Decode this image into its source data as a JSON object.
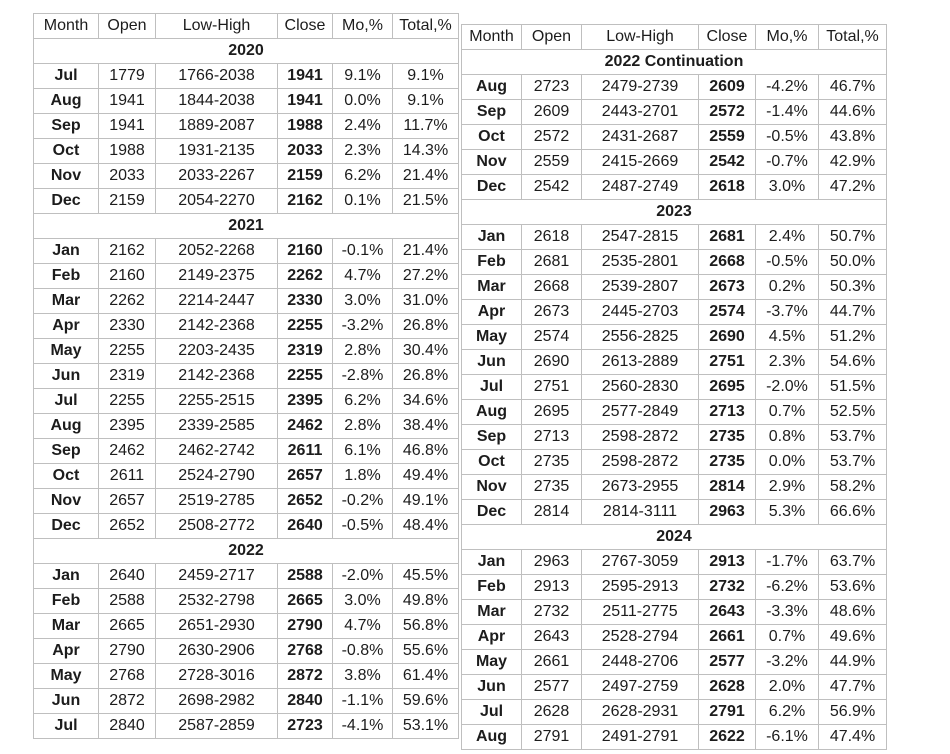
{
  "tables": [
    {
      "id": "left",
      "headers": [
        "Month",
        "Open",
        "Low-High",
        "Close",
        "Mo,%",
        "Total,%"
      ],
      "sections": [
        {
          "year": "2020",
          "rows": [
            [
              "Jul",
              "1779",
              "1766-2038",
              "1941",
              "9.1%",
              "9.1%"
            ],
            [
              "Aug",
              "1941",
              "1844-2038",
              "1941",
              "0.0%",
              "9.1%"
            ],
            [
              "Sep",
              "1941",
              "1889-2087",
              "1988",
              "2.4%",
              "11.7%"
            ],
            [
              "Oct",
              "1988",
              "1931-2135",
              "2033",
              "2.3%",
              "14.3%"
            ],
            [
              "Nov",
              "2033",
              "2033-2267",
              "2159",
              "6.2%",
              "21.4%"
            ],
            [
              "Dec",
              "2159",
              "2054-2270",
              "2162",
              "0.1%",
              "21.5%"
            ]
          ]
        },
        {
          "year": "2021",
          "rows": [
            [
              "Jan",
              "2162",
              "2052-2268",
              "2160",
              "-0.1%",
              "21.4%"
            ],
            [
              "Feb",
              "2160",
              "2149-2375",
              "2262",
              "4.7%",
              "27.2%"
            ],
            [
              "Mar",
              "2262",
              "2214-2447",
              "2330",
              "3.0%",
              "31.0%"
            ],
            [
              "Apr",
              "2330",
              "2142-2368",
              "2255",
              "-3.2%",
              "26.8%"
            ],
            [
              "May",
              "2255",
              "2203-2435",
              "2319",
              "2.8%",
              "30.4%"
            ],
            [
              "Jun",
              "2319",
              "2142-2368",
              "2255",
              "-2.8%",
              "26.8%"
            ],
            [
              "Jul",
              "2255",
              "2255-2515",
              "2395",
              "6.2%",
              "34.6%"
            ],
            [
              "Aug",
              "2395",
              "2339-2585",
              "2462",
              "2.8%",
              "38.4%"
            ],
            [
              "Sep",
              "2462",
              "2462-2742",
              "2611",
              "6.1%",
              "46.8%"
            ],
            [
              "Oct",
              "2611",
              "2524-2790",
              "2657",
              "1.8%",
              "49.4%"
            ],
            [
              "Nov",
              "2657",
              "2519-2785",
              "2652",
              "-0.2%",
              "49.1%"
            ],
            [
              "Dec",
              "2652",
              "2508-2772",
              "2640",
              "-0.5%",
              "48.4%"
            ]
          ]
        },
        {
          "year": "2022",
          "rows": [
            [
              "Jan",
              "2640",
              "2459-2717",
              "2588",
              "-2.0%",
              "45.5%"
            ],
            [
              "Feb",
              "2588",
              "2532-2798",
              "2665",
              "3.0%",
              "49.8%"
            ],
            [
              "Mar",
              "2665",
              "2651-2930",
              "2790",
              "4.7%",
              "56.8%"
            ],
            [
              "Apr",
              "2790",
              "2630-2906",
              "2768",
              "-0.8%",
              "55.6%"
            ],
            [
              "May",
              "2768",
              "2728-3016",
              "2872",
              "3.8%",
              "61.4%"
            ],
            [
              "Jun",
              "2872",
              "2698-2982",
              "2840",
              "-1.1%",
              "59.6%"
            ],
            [
              "Jul",
              "2840",
              "2587-2859",
              "2723",
              "-4.1%",
              "53.1%"
            ]
          ]
        }
      ]
    },
    {
      "id": "right",
      "headers": [
        "Month",
        "Open",
        "Low-High",
        "Close",
        "Mo,%",
        "Total,%"
      ],
      "sections": [
        {
          "year": "2022 Continuation",
          "rows": [
            [
              "Aug",
              "2723",
              "2479-2739",
              "2609",
              "-4.2%",
              "46.7%"
            ],
            [
              "Sep",
              "2609",
              "2443-2701",
              "2572",
              "-1.4%",
              "44.6%"
            ],
            [
              "Oct",
              "2572",
              "2431-2687",
              "2559",
              "-0.5%",
              "43.8%"
            ],
            [
              "Nov",
              "2559",
              "2415-2669",
              "2542",
              "-0.7%",
              "42.9%"
            ],
            [
              "Dec",
              "2542",
              "2487-2749",
              "2618",
              "3.0%",
              "47.2%"
            ]
          ]
        },
        {
          "year": "2023",
          "rows": [
            [
              "Jan",
              "2618",
              "2547-2815",
              "2681",
              "2.4%",
              "50.7%"
            ],
            [
              "Feb",
              "2681",
              "2535-2801",
              "2668",
              "-0.5%",
              "50.0%"
            ],
            [
              "Mar",
              "2668",
              "2539-2807",
              "2673",
              "0.2%",
              "50.3%"
            ],
            [
              "Apr",
              "2673",
              "2445-2703",
              "2574",
              "-3.7%",
              "44.7%"
            ],
            [
              "May",
              "2574",
              "2556-2825",
              "2690",
              "4.5%",
              "51.2%"
            ],
            [
              "Jun",
              "2690",
              "2613-2889",
              "2751",
              "2.3%",
              "54.6%"
            ],
            [
              "Jul",
              "2751",
              "2560-2830",
              "2695",
              "-2.0%",
              "51.5%"
            ],
            [
              "Aug",
              "2695",
              "2577-2849",
              "2713",
              "0.7%",
              "52.5%"
            ],
            [
              "Sep",
              "2713",
              "2598-2872",
              "2735",
              "0.8%",
              "53.7%"
            ],
            [
              "Oct",
              "2735",
              "2598-2872",
              "2735",
              "0.0%",
              "53.7%"
            ],
            [
              "Nov",
              "2735",
              "2673-2955",
              "2814",
              "2.9%",
              "58.2%"
            ],
            [
              "Dec",
              "2814",
              "2814-3111",
              "2963",
              "5.3%",
              "66.6%"
            ]
          ]
        },
        {
          "year": "2024",
          "rows": [
            [
              "Jan",
              "2963",
              "2767-3059",
              "2913",
              "-1.7%",
              "63.7%"
            ],
            [
              "Feb",
              "2913",
              "2595-2913",
              "2732",
              "-6.2%",
              "53.6%"
            ],
            [
              "Mar",
              "2732",
              "2511-2775",
              "2643",
              "-3.3%",
              "48.6%"
            ],
            [
              "Apr",
              "2643",
              "2528-2794",
              "2661",
              "0.7%",
              "49.6%"
            ],
            [
              "May",
              "2661",
              "2448-2706",
              "2577",
              "-3.2%",
              "44.9%"
            ],
            [
              "Jun",
              "2577",
              "2497-2759",
              "2628",
              "2.0%",
              "47.7%"
            ],
            [
              "Jul",
              "2628",
              "2628-2931",
              "2791",
              "6.2%",
              "56.9%"
            ],
            [
              "Aug",
              "2791",
              "2491-2791",
              "2622",
              "-6.1%",
              "47.4%"
            ]
          ]
        }
      ]
    }
  ],
  "cell_column_names": [
    "month-cell",
    "open-cell",
    "low-high-cell",
    "close-cell",
    "mo-pct-cell",
    "total-pct-cell"
  ]
}
